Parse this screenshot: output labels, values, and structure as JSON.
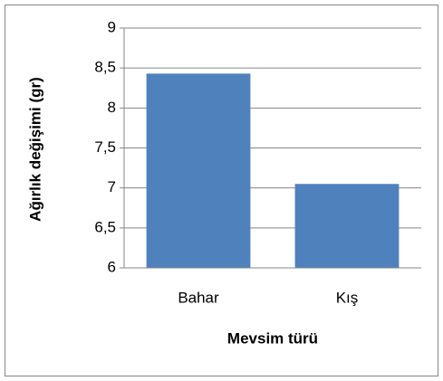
{
  "chart_data": {
    "type": "bar",
    "categories": [
      "Bahar",
      "Kış"
    ],
    "values": [
      8.43,
      7.05
    ],
    "color": "#4f81bd",
    "ylabel": "Ağırlık değişimi (gr)",
    "xlabel": "Mevsim türü",
    "ylim": [
      6,
      9
    ],
    "yticks": [
      6,
      {
        "value": 6.5,
        "label": "6,5"
      },
      7,
      {
        "value": 7.5,
        "label": "7,5"
      },
      8,
      {
        "value": 8.5,
        "label": "8,5"
      },
      9
    ],
    "grid": true
  }
}
